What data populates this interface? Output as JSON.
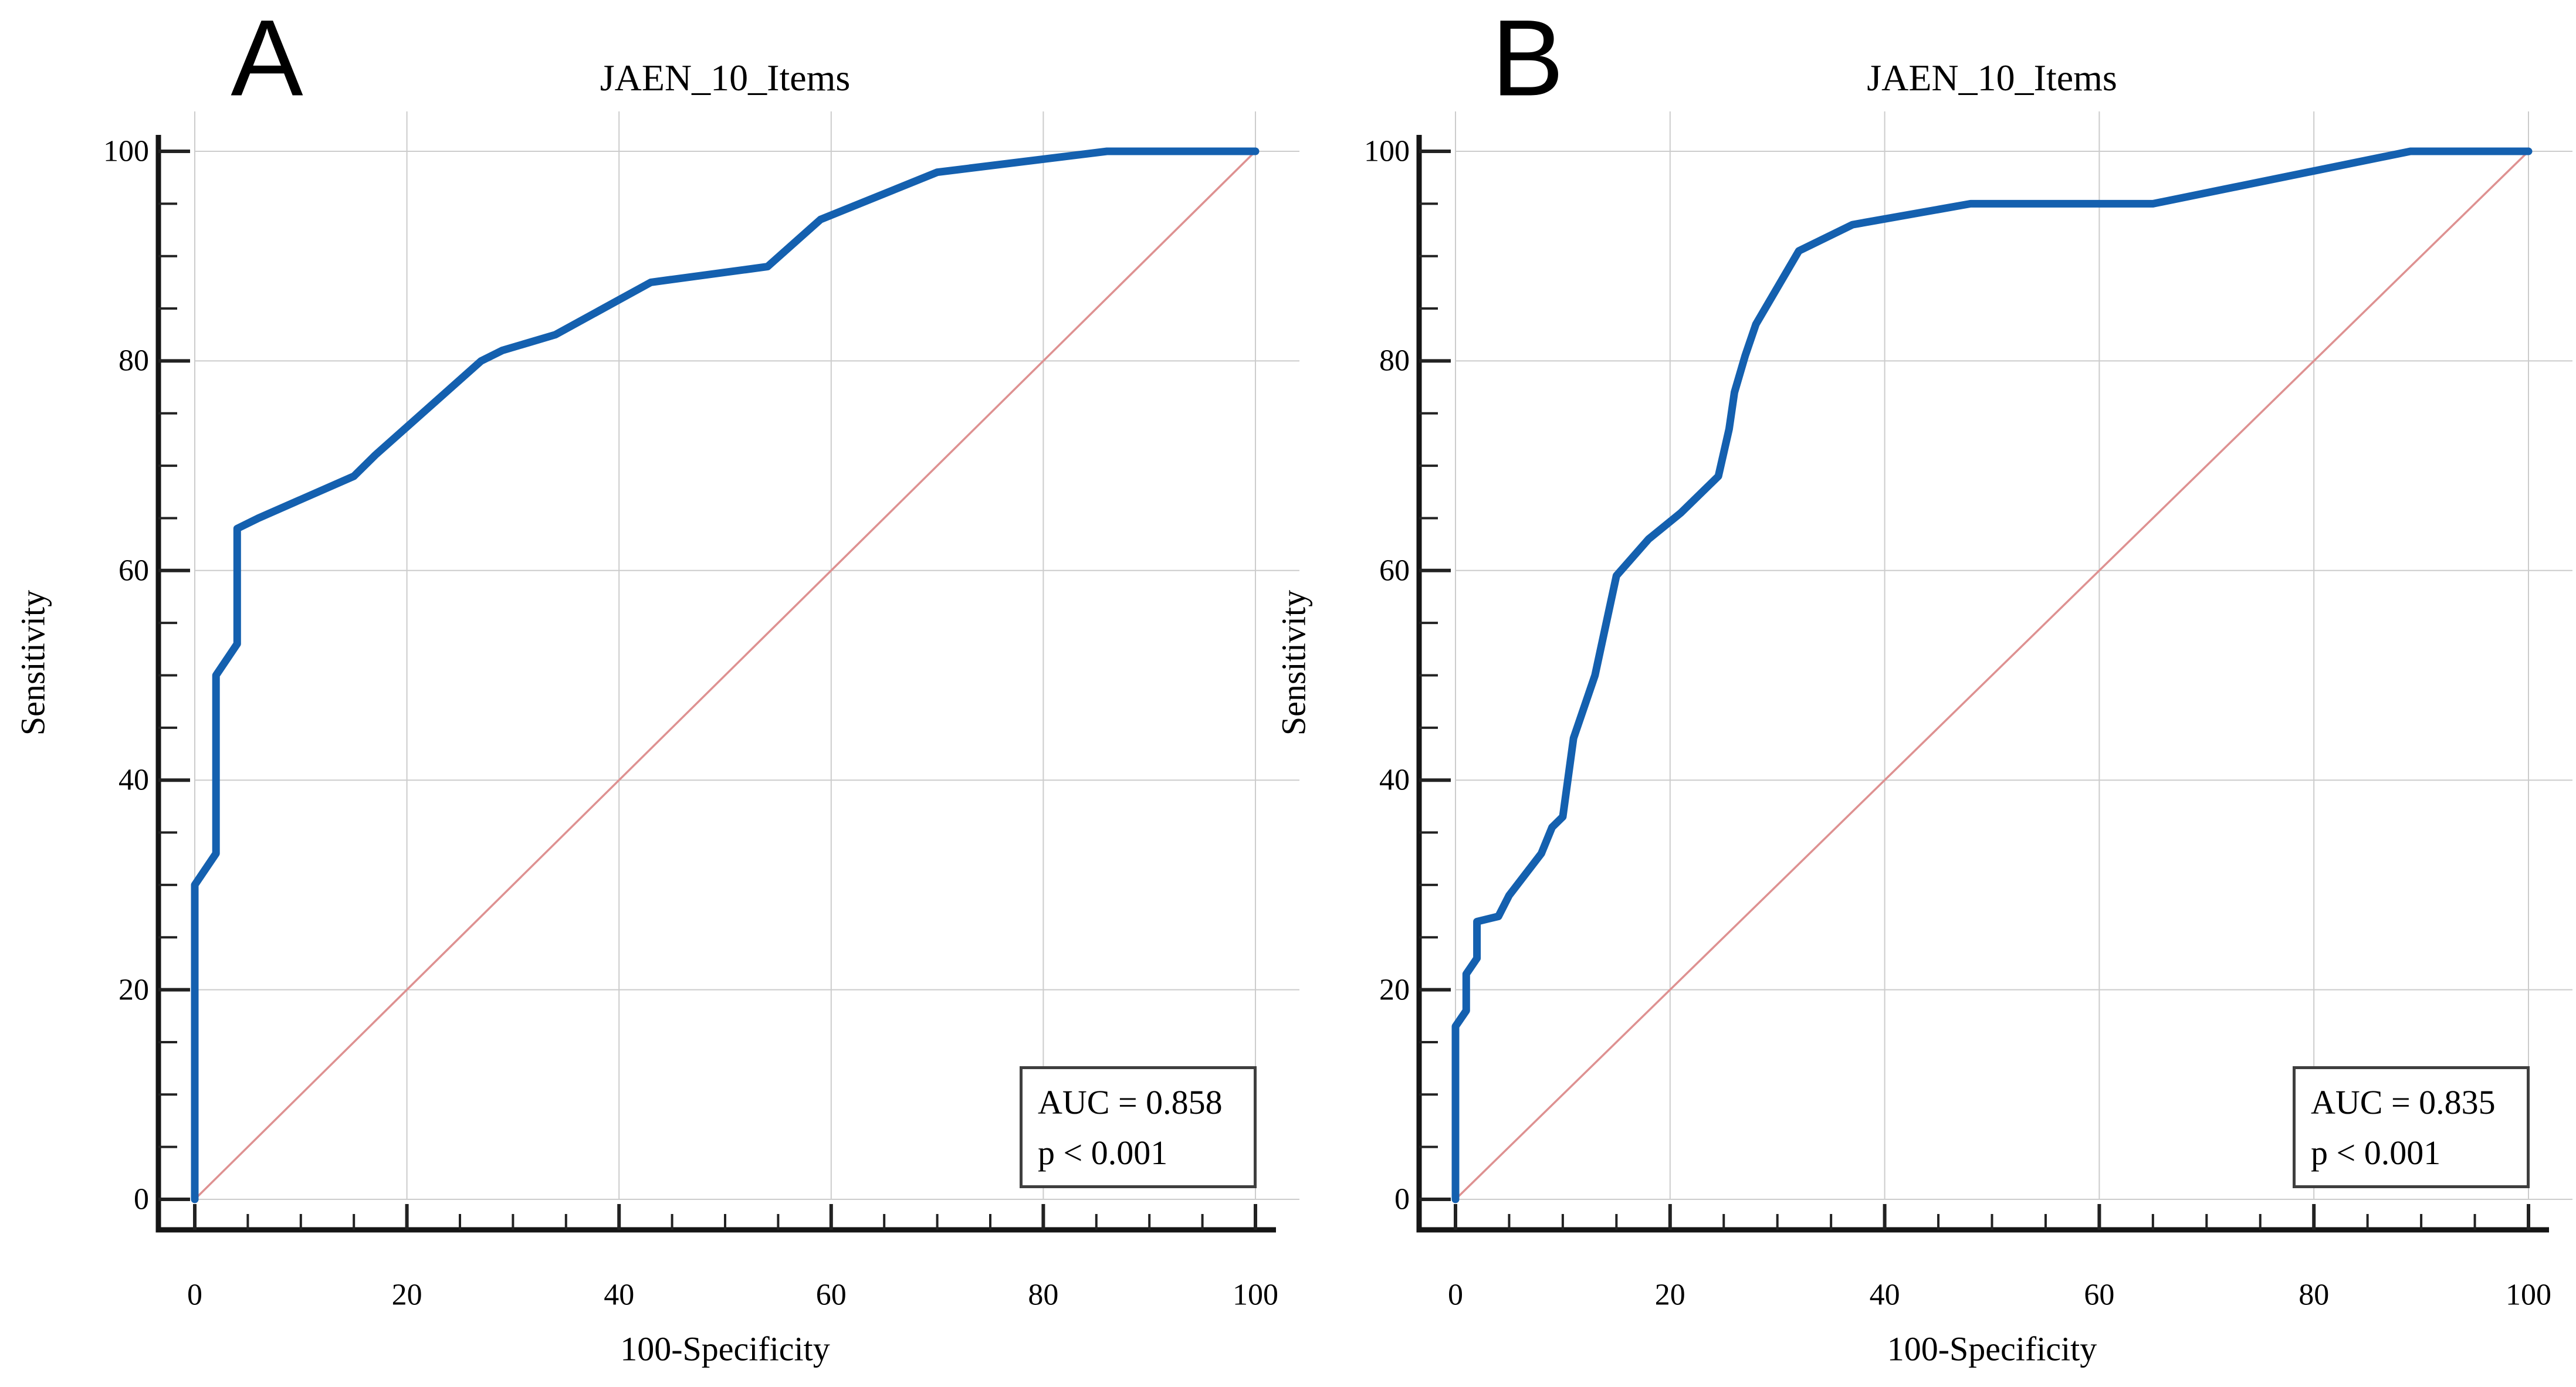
{
  "figure": {
    "colors": {
      "roc_line": "#1460af",
      "reference_diagonal": "#de9191",
      "gridline": "#cccccc",
      "axis_spine": "#151515",
      "tick": "#222222",
      "text": "#000000",
      "stats_box_border": "#3f3f3f",
      "background": "#ffffff"
    }
  },
  "chart_data": [
    {
      "type": "line",
      "panel_letter": "A",
      "title": "JAEN_10_Items",
      "xlabel": "100-Specificity",
      "ylabel": "Sensitivity",
      "xlim": [
        0,
        100
      ],
      "ylim": [
        0,
        100
      ],
      "x_ticks": [
        0,
        20,
        40,
        60,
        80,
        100
      ],
      "y_ticks": [
        0,
        20,
        40,
        60,
        80,
        100
      ],
      "minor_tick_step": 5,
      "grid": true,
      "legend": false,
      "annotations": {
        "auc_label": "AUC = 0.858",
        "p_label": "p < 0.001"
      },
      "series": [
        {
          "name": "ROC curve",
          "points": [
            [
              0,
              0
            ],
            [
              0,
              30
            ],
            [
              2,
              33
            ],
            [
              2,
              50
            ],
            [
              4,
              53
            ],
            [
              4,
              64
            ],
            [
              6,
              65
            ],
            [
              15,
              69
            ],
            [
              17,
              71
            ],
            [
              27,
              80
            ],
            [
              29,
              81
            ],
            [
              34,
              82.5
            ],
            [
              43,
              87.5
            ],
            [
              54,
              89
            ],
            [
              59,
              93.5
            ],
            [
              70,
              98
            ],
            [
              86,
              100
            ],
            [
              100,
              100
            ]
          ]
        },
        {
          "name": "reference diagonal",
          "points": [
            [
              0,
              0
            ],
            [
              100,
              100
            ]
          ]
        }
      ]
    },
    {
      "type": "line",
      "panel_letter": "B",
      "title": "JAEN_10_Items",
      "xlabel": "100-Specificity",
      "ylabel": "Sensitivity",
      "xlim": [
        0,
        100
      ],
      "ylim": [
        0,
        100
      ],
      "x_ticks": [
        0,
        20,
        40,
        60,
        80,
        100
      ],
      "y_ticks": [
        0,
        20,
        40,
        60,
        80,
        100
      ],
      "minor_tick_step": 5,
      "grid": true,
      "legend": false,
      "annotations": {
        "auc_label": "AUC = 0.835",
        "p_label": "p < 0.001"
      },
      "series": [
        {
          "name": "ROC curve",
          "points": [
            [
              0,
              0
            ],
            [
              0,
              16.5
            ],
            [
              1,
              18
            ],
            [
              1,
              21.5
            ],
            [
              2,
              23
            ],
            [
              2,
              26.5
            ],
            [
              4,
              27
            ],
            [
              5,
              29
            ],
            [
              8,
              33
            ],
            [
              9,
              35.5
            ],
            [
              10,
              36.5
            ],
            [
              11,
              44
            ],
            [
              13,
              50
            ],
            [
              15,
              59.5
            ],
            [
              18,
              63
            ],
            [
              21,
              65.5
            ],
            [
              24.5,
              69
            ],
            [
              25.5,
              73.5
            ],
            [
              26,
              77
            ],
            [
              27,
              80.5
            ],
            [
              28,
              83.5
            ],
            [
              32,
              90.5
            ],
            [
              37,
              93
            ],
            [
              48,
              95
            ],
            [
              65,
              95
            ],
            [
              89,
              100
            ],
            [
              100,
              100
            ]
          ]
        },
        {
          "name": "reference diagonal",
          "points": [
            [
              0,
              0
            ],
            [
              100,
              100
            ]
          ]
        }
      ]
    }
  ]
}
